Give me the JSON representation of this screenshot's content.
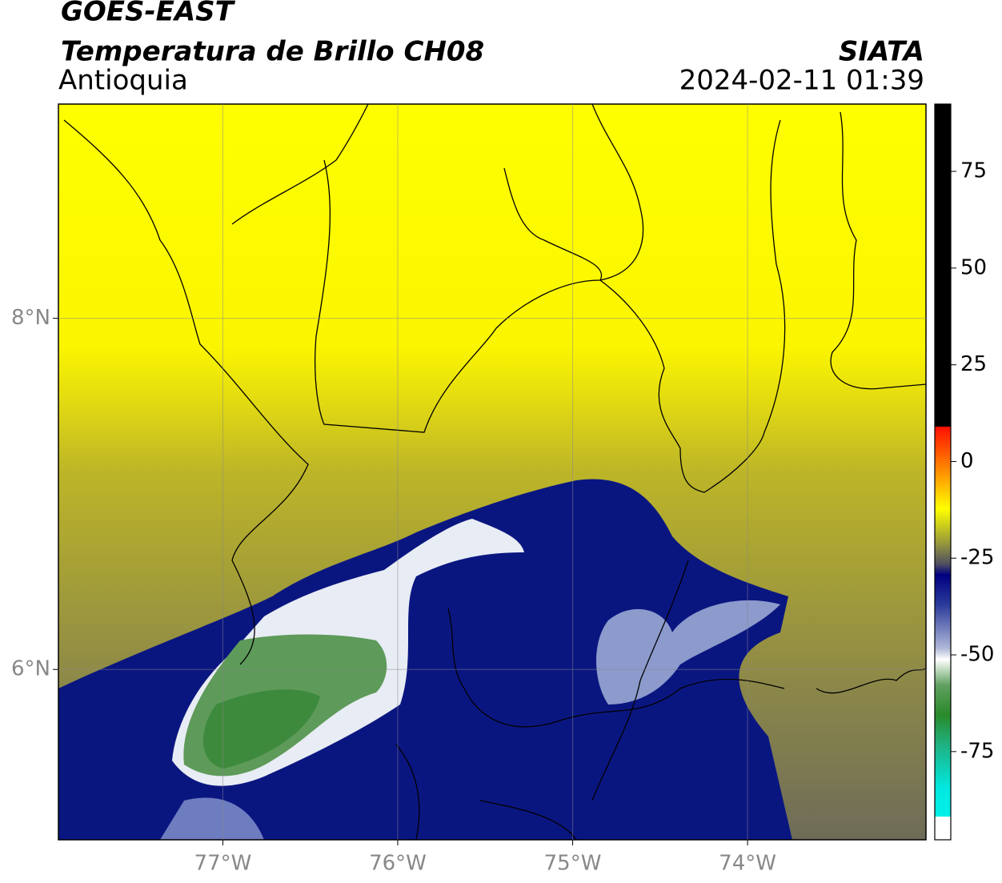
{
  "header": {
    "title": "GOES-EAST",
    "subtitle": "Temperatura de Brillo CH08",
    "region": "Antioquia",
    "source": "SIATA",
    "timestamp": "2024-02-11 01:39"
  },
  "map": {
    "xlim": [
      -77.94,
      -72.98
    ],
    "ylim": [
      5.03,
      9.22
    ],
    "xticks": [
      {
        "value": -77,
        "label": "77°W"
      },
      {
        "value": -76,
        "label": "76°W"
      },
      {
        "value": -75,
        "label": "75°W"
      },
      {
        "value": -74,
        "label": "74°W"
      }
    ],
    "yticks": [
      {
        "value": 6,
        "label": "6°N"
      },
      {
        "value": 8,
        "label": "8°N"
      }
    ],
    "grid": true
  },
  "colorbar": {
    "ylim": [
      -97.8,
      92.4
    ],
    "ticks": [
      75,
      50,
      25,
      0,
      -25,
      -50,
      -75
    ]
  }
}
